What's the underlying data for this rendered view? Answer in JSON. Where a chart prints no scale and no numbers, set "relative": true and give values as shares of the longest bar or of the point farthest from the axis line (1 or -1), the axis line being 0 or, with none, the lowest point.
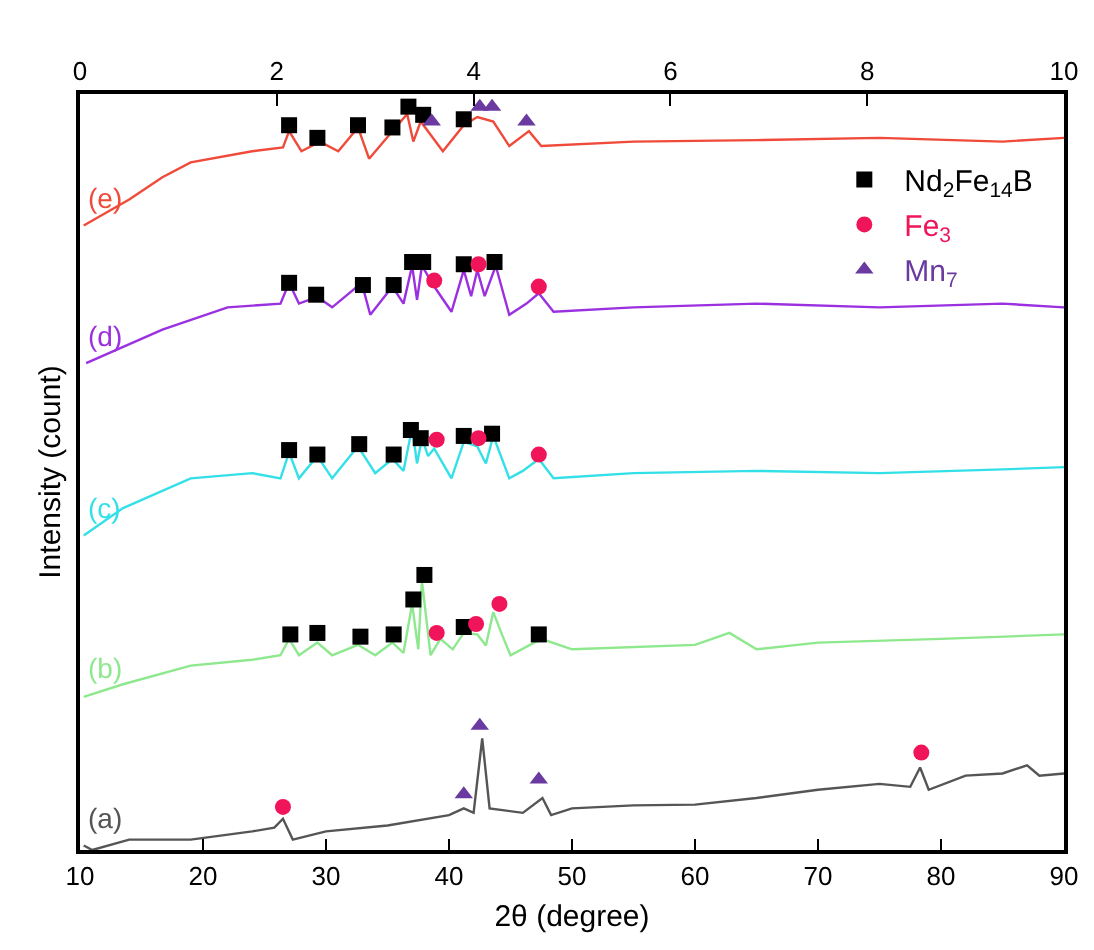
{
  "chart_data": {
    "type": "line",
    "relative": true,
    "xlabel": "2θ (degree)",
    "ylabel": "Intensity (count)",
    "xlim": [
      10,
      90
    ],
    "xticks": [
      10,
      20,
      30,
      40,
      50,
      60,
      70,
      80,
      90
    ],
    "x2lim": [
      0,
      10
    ],
    "x2ticks": [
      0,
      2,
      4,
      6,
      8,
      10
    ],
    "legend": "top right",
    "series": [
      {
        "name": "(a)",
        "color": "#555555",
        "x": [
          10.3,
          11,
          14,
          19,
          24,
          25.8,
          26.5,
          27.3,
          30,
          35,
          40,
          41.2,
          42,
          42.7,
          43.3,
          46,
          47.6,
          48.3,
          50,
          55,
          60,
          65,
          70,
          75,
          77.5,
          78.3,
          79,
          82,
          85,
          87,
          88,
          90
        ],
        "values": [
          0.006,
          0,
          0.014,
          0.014,
          0.025,
          0.03,
          0.042,
          0.014,
          0.025,
          0.033,
          0.047,
          0.056,
          0.05,
          0.15,
          0.056,
          0.05,
          0.07,
          0.047,
          0.056,
          0.06,
          0.061,
          0.07,
          0.081,
          0.089,
          0.085,
          0.111,
          0.081,
          0.1,
          0.103,
          0.114,
          0.1,
          0.103
        ]
      },
      {
        "name": "(b)",
        "color": "#8ee88e",
        "x": [
          10.3,
          13.5,
          19,
          24,
          26.3,
          27,
          27.8,
          29.3,
          30.5,
          32.6,
          34,
          35.4,
          36.3,
          37,
          37.5,
          37.8,
          38.5,
          39.3,
          40.3,
          41.2,
          42.3,
          43,
          43.6,
          44.3,
          45,
          47.5,
          50,
          60,
          62.8,
          65,
          70,
          80,
          90
        ],
        "values": [
          0.206,
          0.223,
          0.248,
          0.256,
          0.262,
          0.284,
          0.262,
          0.279,
          0.262,
          0.276,
          0.262,
          0.279,
          0.265,
          0.331,
          0.27,
          0.362,
          0.262,
          0.284,
          0.27,
          0.292,
          0.29,
          0.275,
          0.32,
          0.29,
          0.262,
          0.284,
          0.27,
          0.276,
          0.292,
          0.27,
          0.279,
          0.284,
          0.29
        ]
      },
      {
        "name": "(c)",
        "color": "#33e0e8",
        "x": [
          10.3,
          13.5,
          19,
          24,
          26.3,
          27,
          27.8,
          29.3,
          30.5,
          32.6,
          34,
          35.4,
          36.3,
          37,
          37.4,
          37.8,
          38.3,
          38.8,
          40.2,
          41.2,
          42.3,
          43,
          43.6,
          44.9,
          46,
          47.3,
          48.5,
          55,
          65,
          75,
          85,
          90
        ],
        "values": [
          0.423,
          0.46,
          0.5,
          0.507,
          0.5,
          0.535,
          0.5,
          0.53,
          0.5,
          0.543,
          0.507,
          0.526,
          0.51,
          0.568,
          0.52,
          0.554,
          0.53,
          0.54,
          0.5,
          0.549,
          0.543,
          0.52,
          0.557,
          0.5,
          0.51,
          0.526,
          0.5,
          0.507,
          0.51,
          0.507,
          0.512,
          0.515
        ]
      },
      {
        "name": "(d)",
        "color": "#9b30e0",
        "x": [
          10.5,
          16.7,
          22,
          26.3,
          27,
          27.8,
          29.3,
          30.5,
          32.9,
          33.6,
          35.4,
          36.3,
          37,
          37.4,
          37.8,
          38.8,
          40.2,
          41.2,
          41.8,
          42.3,
          42.9,
          43.8,
          44.9,
          46.3,
          47.3,
          48.5,
          55,
          65,
          75,
          85,
          90
        ],
        "values": [
          0.655,
          0.7,
          0.73,
          0.735,
          0.763,
          0.735,
          0.744,
          0.73,
          0.763,
          0.72,
          0.758,
          0.735,
          0.786,
          0.74,
          0.786,
          0.758,
          0.724,
          0.78,
          0.745,
          0.78,
          0.745,
          0.786,
          0.72,
          0.735,
          0.749,
          0.724,
          0.73,
          0.735,
          0.73,
          0.735,
          0.73
        ]
      },
      {
        "name": "(e)",
        "color": "#f04a3a",
        "x": [
          10.3,
          14,
          16.7,
          19,
          24,
          26.5,
          27,
          28,
          29.5,
          31,
          32.6,
          33.5,
          35.4,
          36.6,
          37.1,
          37.7,
          39.5,
          41.2,
          42.3,
          43.6,
          44.9,
          46.5,
          47.5,
          55,
          65,
          75,
          85,
          90
        ],
        "values": [
          0.84,
          0.875,
          0.905,
          0.925,
          0.94,
          0.945,
          0.967,
          0.94,
          0.953,
          0.94,
          0.972,
          0.93,
          0.967,
          0.99,
          0.953,
          0.98,
          0.94,
          0.975,
          0.986,
          0.98,
          0.947,
          0.967,
          0.947,
          0.953,
          0.955,
          0.958,
          0.953,
          0.958
        ]
      },
      {
        "name": "Nd$_{2}$Fe$_{14}$B",
        "color": "#000000",
        "type": "scatter",
        "marker": "square",
        "x": [
          27,
          29.3,
          32.6,
          35.4,
          36.7,
          37.9,
          41.2,
          27,
          29.2,
          33,
          35.5,
          37,
          37.9,
          41.2,
          43.7,
          27,
          29.3,
          32.7,
          35.5,
          36.9,
          37.7,
          41.2,
          43.5,
          27.1,
          29.3,
          32.8,
          35.5,
          37.1,
          38,
          41.2,
          47.3
        ],
        "values": [
          0.975,
          0.958,
          0.975,
          0.972,
          1.0,
          0.989,
          0.983,
          0.763,
          0.747,
          0.76,
          0.76,
          0.791,
          0.791,
          0.788,
          0.791,
          0.538,
          0.532,
          0.546,
          0.532,
          0.565,
          0.554,
          0.557,
          0.56,
          0.29,
          0.292,
          0.287,
          0.29,
          0.337,
          0.37,
          0.3,
          0.29
        ]
      },
      {
        "name": "Fe$_{3}$",
        "color": "#f0145a",
        "type": "scatter",
        "marker": "circle",
        "x": [
          38.8,
          42.4,
          47.3,
          39,
          42.4,
          47.3,
          39,
          42.2,
          44.1,
          26.5,
          78.4
        ],
        "values": [
          0.766,
          0.788,
          0.758,
          0.552,
          0.554,
          0.532,
          0.292,
          0.304,
          0.331,
          0.058,
          0.131
        ]
      },
      {
        "name": "Mn$_{7}$",
        "color": "#6a3aa0",
        "type": "scatter",
        "marker": "triangle",
        "x": [
          38.6,
          42.5,
          43.5,
          46.3,
          41.2,
          42.5,
          47.3
        ],
        "values": [
          0.98,
          1.0,
          1.0,
          0.98,
          0.075,
          0.167,
          0.095
        ]
      }
    ]
  }
}
